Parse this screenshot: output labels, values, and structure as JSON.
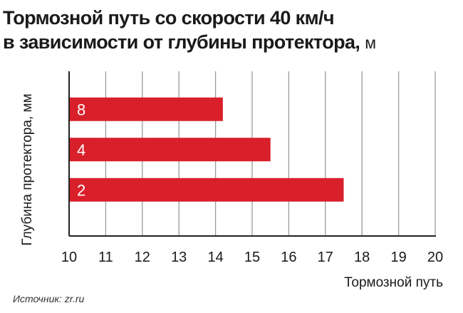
{
  "title": {
    "line1": "Тормозной путь со скорости 40 км/ч",
    "line2": "в зависимости от глубины  протектора,",
    "unit": "м"
  },
  "source": "Источник: zr.ru",
  "colors": {
    "bar": "#d81f2a",
    "grid": "#9a9a9a",
    "axis": "#222222",
    "text": "#1a1a1a"
  },
  "chart_data": {
    "type": "bar",
    "orientation": "horizontal",
    "categories": [
      "8",
      "4",
      "2"
    ],
    "values": [
      14.2,
      15.5,
      17.5
    ],
    "xlabel": "Тормозной путь",
    "ylabel": "Глубина протектора, мм",
    "xlim": [
      10,
      20
    ],
    "xticks": [
      "10",
      "11",
      "12",
      "13",
      "14",
      "15",
      "16",
      "17",
      "18",
      "19",
      "20"
    ],
    "grid": true,
    "legend": false
  }
}
